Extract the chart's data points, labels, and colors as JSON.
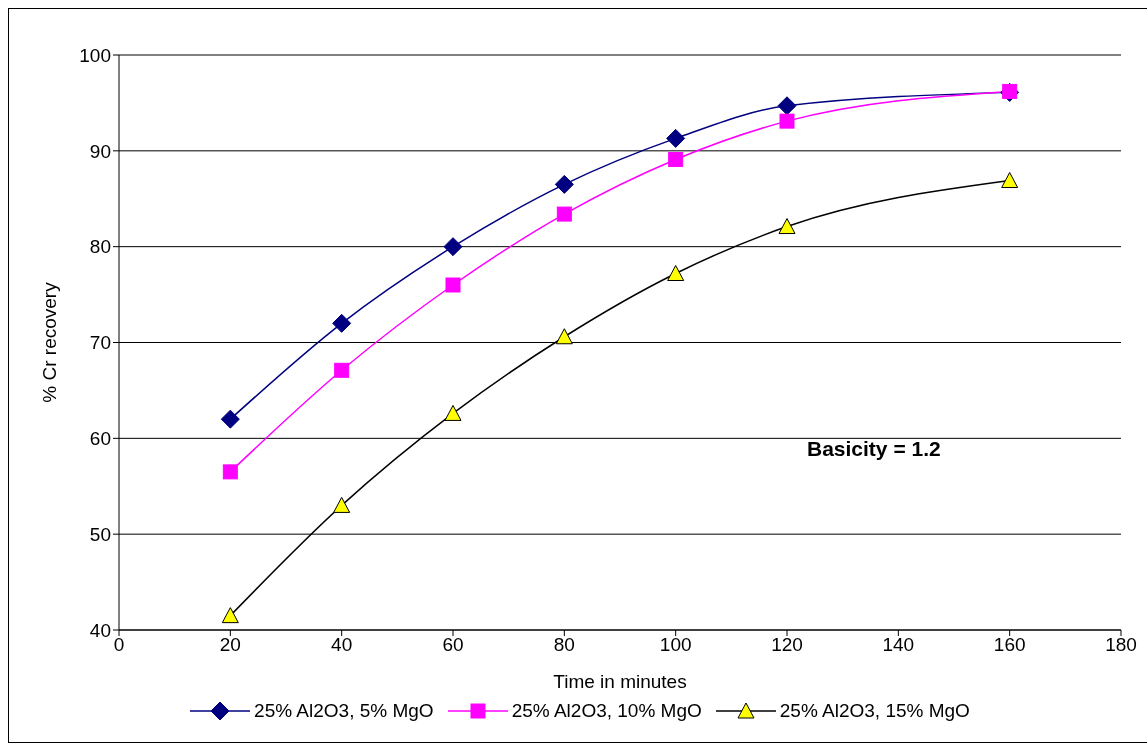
{
  "chart_data": {
    "type": "line",
    "xlabel": "Time in minutes",
    "ylabel": "% Cr recovery",
    "annotations": [
      "Basicity = 1.2"
    ],
    "x": [
      20,
      40,
      60,
      80,
      100,
      120,
      160
    ],
    "series": [
      {
        "name": "25% Al2O3, 5% MgO",
        "color": "#000080",
        "marker": "diamond",
        "values": [
          62,
          72,
          80,
          86.5,
          91.3,
          94.7,
          96.1
        ]
      },
      {
        "name": "25% Al2O3, 10% MgO",
        "color": "#ff00ff",
        "marker": "square",
        "values": [
          56.5,
          67.1,
          76,
          83.4,
          89.1,
          93.1,
          96.2
        ]
      },
      {
        "name": "25% Al2O3, 15% MgO",
        "color": "#000000",
        "colors": [
          "#ffff00",
          "#ffff00",
          "#ffff00",
          "#ffff00",
          "#ffff00",
          "#ffff00",
          "#ffff00"
        ],
        "marker": "triangle",
        "values": [
          41.5,
          53,
          62.6,
          70.6,
          77.2,
          82.1,
          86.9
        ]
      }
    ],
    "xlim": [
      0,
      180
    ],
    "xticks": [
      0,
      20,
      40,
      60,
      80,
      100,
      120,
      140,
      160,
      180
    ],
    "ylim": [
      40,
      100
    ],
    "yticks": [
      40,
      50,
      60,
      70,
      80,
      90,
      100
    ],
    "grid": "y",
    "legend": "bottom",
    "line_style": "solid"
  }
}
